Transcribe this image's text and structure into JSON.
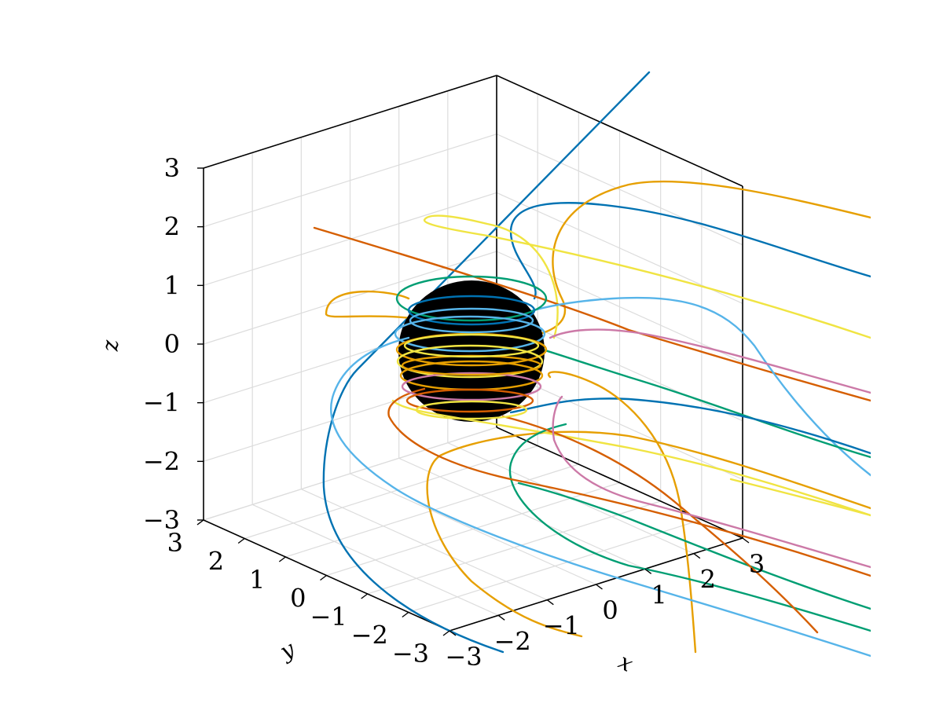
{
  "chart_data": {
    "type": "line",
    "title": "",
    "xlabel": "x",
    "ylabel": "y",
    "zlabel": "z",
    "xlim": [
      -3,
      3
    ],
    "ylim": [
      -3,
      3
    ],
    "zlim": [
      -3,
      3
    ],
    "x_ticks": [
      "−3",
      "−2",
      "−1",
      "0",
      "1",
      "2",
      "3"
    ],
    "y_ticks": [
      "−3",
      "−2",
      "−1",
      "0",
      "1",
      "2",
      "3"
    ],
    "z_ticks": [
      "−3",
      "−2",
      "−1",
      "0",
      "1",
      "2",
      "3"
    ],
    "grid": true,
    "central_sphere": {
      "color": "#000000",
      "radius": 1.0
    },
    "series": [
      {
        "color": "#0072b2"
      },
      {
        "color": "#e69f00"
      },
      {
        "color": "#009e73"
      },
      {
        "color": "#cc79a7"
      },
      {
        "color": "#56b4e9"
      },
      {
        "color": "#d55e00"
      },
      {
        "color": "#f0e442"
      }
    ]
  }
}
